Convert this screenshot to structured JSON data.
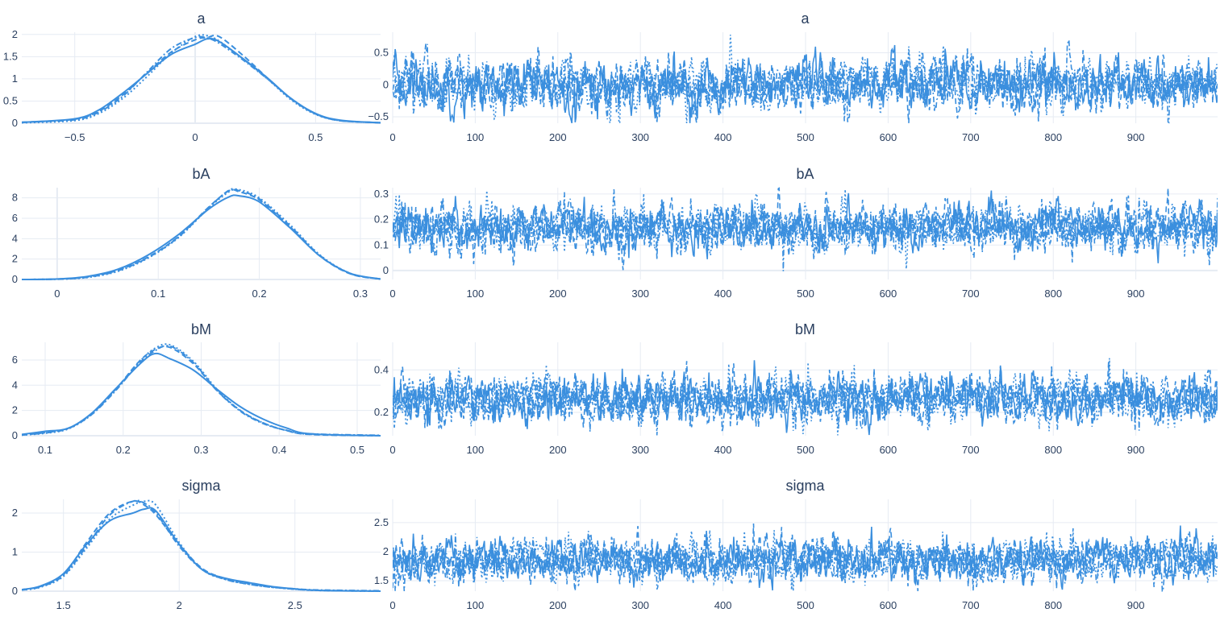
{
  "chart_data": [
    {
      "type": "line",
      "kind": "kde",
      "title": "a",
      "xlim": [
        -0.72,
        0.77
      ],
      "ylim": [
        0,
        2.05
      ],
      "x_ticks": [
        -0.5,
        0,
        0.5
      ],
      "x_tick_labels": [
        "−0.5",
        "0",
        "0.5"
      ],
      "y_ticks": [
        0,
        0.5,
        1,
        1.5,
        2
      ],
      "y_tick_labels": [
        "0",
        "0.5",
        "1",
        "1.5",
        "2"
      ],
      "series": [
        {
          "dash": "solid",
          "x": [
            -0.72,
            -0.5,
            -0.4,
            -0.3,
            -0.2,
            -0.1,
            0,
            0.05,
            0.1,
            0.2,
            0.3,
            0.4,
            0.5,
            0.6,
            0.77
          ],
          "y": [
            0.02,
            0.1,
            0.3,
            0.68,
            1.12,
            1.55,
            1.78,
            1.9,
            1.84,
            1.45,
            1.02,
            0.55,
            0.22,
            0.07,
            0.01
          ]
        },
        {
          "dash": "dot",
          "x": [
            -0.72,
            -0.5,
            -0.4,
            -0.3,
            -0.2,
            -0.1,
            0,
            0.05,
            0.1,
            0.2,
            0.3,
            0.4,
            0.5,
            0.6,
            0.77
          ],
          "y": [
            0.01,
            0.06,
            0.22,
            0.56,
            1.05,
            1.58,
            1.95,
            1.97,
            1.85,
            1.44,
            1.0,
            0.52,
            0.2,
            0.06,
            0.01
          ]
        },
        {
          "dash": "dash",
          "x": [
            -0.72,
            -0.5,
            -0.4,
            -0.3,
            -0.2,
            -0.1,
            0,
            0.05,
            0.1,
            0.2,
            0.3,
            0.4,
            0.5,
            0.6,
            0.77
          ],
          "y": [
            0.02,
            0.09,
            0.27,
            0.64,
            1.13,
            1.6,
            1.88,
            1.93,
            1.95,
            1.52,
            1.02,
            0.54,
            0.21,
            0.06,
            0.01
          ]
        },
        {
          "dash": "dashdot",
          "x": [
            -0.72,
            -0.5,
            -0.4,
            -0.3,
            -0.2,
            -0.1,
            0,
            0.05,
            0.1,
            0.2,
            0.3,
            0.4,
            0.5,
            0.6,
            0.77
          ],
          "y": [
            0.02,
            0.08,
            0.25,
            0.61,
            1.15,
            1.68,
            1.93,
            1.92,
            1.8,
            1.42,
            1.0,
            0.55,
            0.21,
            0.06,
            0.01
          ]
        }
      ]
    },
    {
      "type": "line",
      "kind": "trace",
      "title": "a",
      "xlim": [
        0,
        999
      ],
      "ylim": [
        -0.6,
        0.82
      ],
      "x_ticks": [
        0,
        100,
        200,
        300,
        400,
        500,
        600,
        700,
        800,
        900
      ],
      "x_tick_labels": [
        "0",
        "100",
        "200",
        "300",
        "400",
        "500",
        "600",
        "700",
        "800",
        "900"
      ],
      "y_ticks": [
        -0.5,
        0,
        0.5
      ],
      "y_tick_labels": [
        "−0.5",
        "0",
        "0.5"
      ],
      "draws": 1000,
      "chains": 4,
      "center": 0.0,
      "spread": 0.2
    },
    {
      "type": "line",
      "kind": "kde",
      "title": "bA",
      "xlim": [
        -0.035,
        0.32
      ],
      "ylim": [
        0,
        9.0
      ],
      "x_ticks": [
        0,
        0.1,
        0.2,
        0.3
      ],
      "x_tick_labels": [
        "0",
        "0.1",
        "0.2",
        "0.3"
      ],
      "y_ticks": [
        0,
        2,
        4,
        6,
        8
      ],
      "y_tick_labels": [
        "0",
        "2",
        "4",
        "6",
        "8"
      ],
      "series": [
        {
          "dash": "solid",
          "x": [
            -0.035,
            0,
            0.03,
            0.06,
            0.09,
            0.12,
            0.15,
            0.17,
            0.18,
            0.2,
            0.23,
            0.26,
            0.29,
            0.32
          ],
          "y": [
            0.0,
            0.05,
            0.3,
            1.0,
            2.4,
            4.4,
            6.9,
            8.1,
            8.2,
            7.6,
            5.1,
            2.3,
            0.6,
            0.05
          ]
        },
        {
          "dash": "dot",
          "x": [
            -0.035,
            0,
            0.03,
            0.06,
            0.09,
            0.12,
            0.15,
            0.17,
            0.18,
            0.2,
            0.23,
            0.26,
            0.29,
            0.32
          ],
          "y": [
            0.0,
            0.03,
            0.2,
            0.8,
            2.1,
            4.1,
            7.0,
            8.6,
            8.8,
            8.0,
            5.4,
            2.4,
            0.6,
            0.04
          ]
        },
        {
          "dash": "dash",
          "x": [
            -0.035,
            0,
            0.03,
            0.06,
            0.09,
            0.12,
            0.15,
            0.17,
            0.18,
            0.2,
            0.23,
            0.26,
            0.29,
            0.32
          ],
          "y": [
            0.0,
            0.04,
            0.25,
            0.9,
            2.2,
            4.2,
            7.1,
            8.7,
            8.6,
            7.8,
            5.2,
            2.3,
            0.55,
            0.04
          ]
        },
        {
          "dash": "dashdot",
          "x": [
            -0.035,
            0,
            0.03,
            0.06,
            0.09,
            0.12,
            0.15,
            0.17,
            0.18,
            0.2,
            0.23,
            0.26,
            0.29,
            0.32
          ],
          "y": [
            0.0,
            0.03,
            0.22,
            0.85,
            2.15,
            4.15,
            7.05,
            8.75,
            8.7,
            7.9,
            5.3,
            2.35,
            0.58,
            0.04
          ]
        }
      ]
    },
    {
      "type": "line",
      "kind": "trace",
      "title": "bA",
      "xlim": [
        0,
        999
      ],
      "ylim": [
        -0.035,
        0.325
      ],
      "x_ticks": [
        0,
        100,
        200,
        300,
        400,
        500,
        600,
        700,
        800,
        900
      ],
      "x_tick_labels": [
        "0",
        "100",
        "200",
        "300",
        "400",
        "500",
        "600",
        "700",
        "800",
        "900"
      ],
      "y_ticks": [
        0,
        0.1,
        0.2,
        0.3
      ],
      "y_tick_labels": [
        "0",
        "0.1",
        "0.2",
        "0.3"
      ],
      "draws": 1000,
      "chains": 4,
      "center": 0.17,
      "spread": 0.045
    },
    {
      "type": "line",
      "kind": "kde",
      "title": "bM",
      "xlim": [
        0.07,
        0.53
      ],
      "ylim": [
        0,
        7.4
      ],
      "x_ticks": [
        0.1,
        0.2,
        0.3,
        0.4,
        0.5
      ],
      "x_tick_labels": [
        "0.1",
        "0.2",
        "0.3",
        "0.4",
        "0.5"
      ],
      "y_ticks": [
        0,
        2,
        4,
        6
      ],
      "y_tick_labels": [
        "0",
        "2",
        "4",
        "6"
      ],
      "series": [
        {
          "dash": "solid",
          "x": [
            0.07,
            0.1,
            0.13,
            0.16,
            0.19,
            0.22,
            0.24,
            0.26,
            0.29,
            0.32,
            0.35,
            0.38,
            0.41,
            0.44,
            0.53
          ],
          "y": [
            0.1,
            0.35,
            0.6,
            1.8,
            3.7,
            5.6,
            6.5,
            6.1,
            5.2,
            3.7,
            2.3,
            1.3,
            0.6,
            0.15,
            0.0
          ]
        },
        {
          "dash": "dot",
          "x": [
            0.07,
            0.1,
            0.13,
            0.16,
            0.19,
            0.22,
            0.24,
            0.26,
            0.29,
            0.32,
            0.35,
            0.38,
            0.41,
            0.44,
            0.53
          ],
          "y": [
            0.05,
            0.2,
            0.55,
            1.7,
            3.6,
            5.8,
            6.9,
            7.2,
            5.9,
            3.7,
            2.0,
            1.0,
            0.4,
            0.12,
            0.0
          ]
        },
        {
          "dash": "dash",
          "x": [
            0.07,
            0.1,
            0.13,
            0.16,
            0.19,
            0.22,
            0.24,
            0.26,
            0.29,
            0.32,
            0.35,
            0.38,
            0.41,
            0.44,
            0.53
          ],
          "y": [
            0.06,
            0.25,
            0.6,
            1.75,
            3.65,
            5.85,
            6.8,
            7.0,
            5.7,
            3.6,
            2.0,
            1.0,
            0.4,
            0.1,
            0.0
          ]
        },
        {
          "dash": "dashdot",
          "x": [
            0.07,
            0.1,
            0.13,
            0.16,
            0.19,
            0.22,
            0.24,
            0.26,
            0.29,
            0.32,
            0.35,
            0.38,
            0.41,
            0.44,
            0.53
          ],
          "y": [
            0.06,
            0.22,
            0.58,
            1.7,
            3.55,
            5.7,
            6.7,
            7.1,
            5.8,
            3.6,
            1.95,
            0.95,
            0.42,
            0.15,
            0.03
          ]
        }
      ]
    },
    {
      "type": "line",
      "kind": "trace",
      "title": "bM",
      "xlim": [
        0,
        999
      ],
      "ylim": [
        0.09,
        0.53
      ],
      "x_ticks": [
        0,
        100,
        200,
        300,
        400,
        500,
        600,
        700,
        800,
        900
      ],
      "x_tick_labels": [
        "0",
        "100",
        "200",
        "300",
        "400",
        "500",
        "600",
        "700",
        "800",
        "900"
      ],
      "y_ticks": [
        0.2,
        0.4
      ],
      "y_tick_labels": [
        "0.2",
        "0.4"
      ],
      "draws": 1000,
      "chains": 4,
      "center": 0.26,
      "spread": 0.055
    },
    {
      "type": "line",
      "kind": "kde",
      "title": "sigma",
      "xlim": [
        1.32,
        2.87
      ],
      "ylim": [
        0,
        2.35
      ],
      "x_ticks": [
        1.5,
        2,
        2.5
      ],
      "x_tick_labels": [
        "1.5",
        "2",
        "2.5"
      ],
      "y_ticks": [
        0,
        1,
        2
      ],
      "y_tick_labels": [
        "0",
        "1",
        "2"
      ],
      "series": [
        {
          "dash": "solid",
          "x": [
            1.32,
            1.4,
            1.5,
            1.6,
            1.7,
            1.8,
            1.85,
            1.9,
            2.0,
            2.1,
            2.2,
            2.3,
            2.4,
            2.5,
            2.6,
            2.87
          ],
          "y": [
            0.04,
            0.13,
            0.45,
            1.2,
            1.8,
            2.0,
            2.1,
            2.05,
            1.2,
            0.55,
            0.33,
            0.22,
            0.12,
            0.06,
            0.02,
            0.0
          ]
        },
        {
          "dash": "dot",
          "x": [
            1.32,
            1.4,
            1.5,
            1.6,
            1.7,
            1.8,
            1.85,
            1.9,
            2.0,
            2.1,
            2.2,
            2.3,
            2.4,
            2.5,
            2.6,
            2.87
          ],
          "y": [
            0.03,
            0.1,
            0.38,
            1.1,
            1.85,
            2.2,
            2.3,
            2.2,
            1.25,
            0.55,
            0.3,
            0.18,
            0.1,
            0.05,
            0.02,
            0.0
          ]
        },
        {
          "dash": "dash",
          "x": [
            1.32,
            1.4,
            1.5,
            1.6,
            1.7,
            1.8,
            1.85,
            1.9,
            2.0,
            2.1,
            2.2,
            2.3,
            2.4,
            2.5,
            2.6,
            2.87
          ],
          "y": [
            0.04,
            0.12,
            0.42,
            1.25,
            2.0,
            2.3,
            2.2,
            1.95,
            1.2,
            0.58,
            0.32,
            0.2,
            0.11,
            0.05,
            0.02,
            0.0
          ]
        },
        {
          "dash": "dashdot",
          "x": [
            1.32,
            1.4,
            1.5,
            1.6,
            1.7,
            1.8,
            1.85,
            1.9,
            2.0,
            2.1,
            2.2,
            2.3,
            2.4,
            2.5,
            2.6,
            2.87
          ],
          "y": [
            0.03,
            0.11,
            0.4,
            1.15,
            1.95,
            2.3,
            2.25,
            2.0,
            1.15,
            0.55,
            0.3,
            0.18,
            0.1,
            0.06,
            0.03,
            0.01
          ]
        }
      ]
    },
    {
      "type": "line",
      "kind": "trace",
      "title": "sigma",
      "xlim": [
        0,
        999
      ],
      "ylim": [
        1.32,
        2.9
      ],
      "x_ticks": [
        0,
        100,
        200,
        300,
        400,
        500,
        600,
        700,
        800,
        900
      ],
      "x_tick_labels": [
        "0",
        "100",
        "200",
        "300",
        "400",
        "500",
        "600",
        "700",
        "800",
        "900"
      ],
      "y_ticks": [
        1.5,
        2,
        2.5
      ],
      "y_tick_labels": [
        "1.5",
        "2",
        "2.5"
      ],
      "draws": 1000,
      "chains": 4,
      "center": 1.85,
      "spread": 0.18
    }
  ],
  "colors": {
    "line": "#3b8fde",
    "grid": "#e6ebf3",
    "text": "#2a3f5f",
    "background": "#ffffff"
  }
}
